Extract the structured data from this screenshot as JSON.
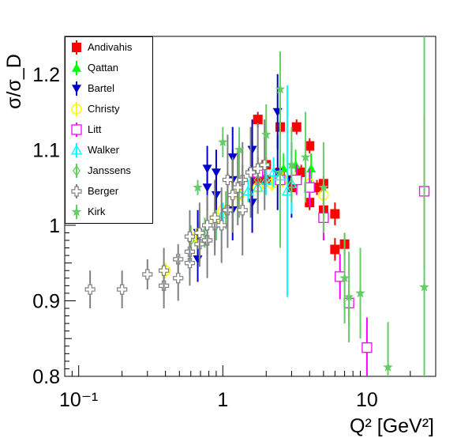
{
  "chart_data": {
    "type": "scatter",
    "x_scale": "log",
    "xlim": [
      0.08,
      30
    ],
    "ylim": [
      0.8,
      1.25
    ],
    "ylabel": "σ/σ_D",
    "xlabel": "Q² [GeV²]",
    "x_tick_labels": [
      "10⁻¹",
      "1",
      "10"
    ],
    "y_tick_labels": [
      "0.8",
      "0.9",
      "1",
      "1.1",
      "1.2"
    ],
    "legend_position": "top-left",
    "series": [
      {
        "name": "Andivahis",
        "marker": "filled-square",
        "color": "#ff0000",
        "points": [
          [
            1.75,
            1.14,
            0.01
          ],
          [
            2.5,
            1.13,
            0.01
          ],
          [
            3.25,
            1.13,
            0.01
          ],
          [
            4.0,
            1.105,
            0.01
          ],
          [
            5.0,
            1.055,
            0.01
          ],
          [
            2.0,
            1.06,
            0.01
          ],
          [
            2.5,
            1.07,
            0.01
          ],
          [
            3.0,
            1.05,
            0.01
          ],
          [
            3.5,
            1.07,
            0.01
          ],
          [
            4.0,
            1.03,
            0.01
          ],
          [
            4.5,
            1.05,
            0.01
          ],
          [
            5.0,
            1.02,
            0.01
          ],
          [
            6.0,
            1.015,
            0.015
          ],
          [
            6.0,
            0.968,
            0.015
          ],
          [
            7.0,
            0.975,
            0.015
          ],
          [
            1.75,
            1.06,
            0.01
          ],
          [
            2.0,
            1.08,
            0.01
          ],
          [
            3.0,
            1.06,
            0.01
          ]
        ]
      },
      {
        "name": "Qattan",
        "marker": "filled-triangle-up",
        "color": "#00ff00",
        "points": [
          [
            2.64,
            1.075,
            0.02
          ],
          [
            3.2,
            1.08,
            0.02
          ],
          [
            4.1,
            1.075,
            0.02
          ]
        ]
      },
      {
        "name": "Bartel",
        "marker": "filled-triangle-down",
        "color": "#0000cc",
        "points": [
          [
            0.67,
            0.955,
            0.03
          ],
          [
            0.67,
            0.99,
            0.03
          ],
          [
            0.78,
            1.05,
            0.03
          ],
          [
            0.78,
            1.075,
            0.03
          ],
          [
            0.9,
            1.04,
            0.03
          ],
          [
            0.9,
            1.07,
            0.03
          ],
          [
            1.17,
            1.02,
            0.04
          ],
          [
            1.17,
            1.06,
            0.04
          ],
          [
            1.17,
            1.09,
            0.04
          ],
          [
            1.6,
            1.03,
            0.04
          ],
          [
            1.6,
            1.07,
            0.04
          ],
          [
            1.6,
            1.1,
            0.04
          ],
          [
            2.4,
            1.07,
            0.05
          ],
          [
            2.4,
            1.15,
            0.05
          ],
          [
            3.0,
            1.06,
            0.05
          ]
        ]
      },
      {
        "name": "Christy",
        "marker": "open-circle",
        "color": "#ffff00",
        "points": [
          [
            0.65,
            0.985,
            0.01
          ],
          [
            0.9,
            1.01,
            0.01
          ],
          [
            1.0,
            1.02,
            0.01
          ],
          [
            1.3,
            1.04,
            0.01
          ],
          [
            1.75,
            1.05,
            0.01
          ],
          [
            2.2,
            1.055,
            0.01
          ],
          [
            2.6,
            1.06,
            0.01
          ],
          [
            3.2,
            1.06,
            0.01
          ],
          [
            4.0,
            1.055,
            0.01
          ],
          [
            5.0,
            1.04,
            0.01
          ],
          [
            0.4,
            0.94,
            0.01
          ]
        ]
      },
      {
        "name": "Litt",
        "marker": "open-square",
        "color": "#ff00ff",
        "points": [
          [
            1.75,
            1.07,
            0.02
          ],
          [
            2.5,
            1.06,
            0.02
          ],
          [
            3.25,
            1.06,
            0.02
          ],
          [
            4.0,
            1.05,
            0.025
          ],
          [
            5.0,
            1.01,
            0.03
          ],
          [
            6.5,
            0.932,
            0.03
          ],
          [
            7.5,
            0.897,
            0.03
          ],
          [
            10.0,
            0.838,
            0.04
          ],
          [
            25.0,
            1.045,
            0.1
          ]
        ]
      },
      {
        "name": "Walker",
        "marker": "open-triangle-up",
        "color": "#00ffff",
        "points": [
          [
            1.0,
            1.015,
            0.015
          ],
          [
            1.5,
            1.045,
            0.015
          ],
          [
            2.0,
            1.06,
            0.02
          ],
          [
            2.5,
            1.065,
            0.025
          ],
          [
            3.0,
            1.055,
            0.04
          ],
          [
            1.75,
            1.05,
            0.02
          ],
          [
            2.25,
            1.07,
            0.02
          ],
          [
            2.8,
            1.045,
            0.14
          ]
        ]
      },
      {
        "name": "Janssens",
        "marker": "open-diamond",
        "color": "#66cc66",
        "points": [
          [
            0.6,
            0.98,
            0.02
          ],
          [
            0.75,
            0.99,
            0.02
          ],
          [
            0.9,
            1.0,
            0.02
          ],
          [
            1.05,
            1.02,
            0.025
          ],
          [
            1.3,
            1.04,
            0.03
          ],
          [
            1.75,
            1.06,
            0.03
          ]
        ]
      },
      {
        "name": "Berger",
        "marker": "open-cross",
        "color": "#808080",
        "points": [
          [
            0.12,
            0.915,
            0.025
          ],
          [
            0.2,
            0.915,
            0.025
          ],
          [
            0.3,
            0.935,
            0.02
          ],
          [
            0.39,
            0.92,
            0.03
          ],
          [
            0.39,
            0.94,
            0.03
          ],
          [
            0.49,
            0.955,
            0.02
          ],
          [
            0.59,
            0.965,
            0.03
          ],
          [
            0.59,
            0.95,
            0.03
          ],
          [
            0.69,
            0.975,
            0.03
          ],
          [
            0.78,
            0.98,
            0.05
          ],
          [
            0.88,
            1.0,
            0.03
          ],
          [
            0.98,
            1.0,
            0.05
          ],
          [
            1.08,
            1.02,
            0.05
          ],
          [
            1.17,
            1.04,
            0.05
          ],
          [
            1.27,
            1.05,
            0.05
          ],
          [
            1.37,
            1.06,
            0.05
          ],
          [
            1.56,
            1.07,
            0.06
          ],
          [
            1.75,
            1.075,
            0.06
          ],
          [
            1.95,
            1.08,
            0.06
          ],
          [
            0.49,
            0.93,
            0.03
          ],
          [
            0.59,
            0.985,
            0.035
          ],
          [
            0.69,
            0.99,
            0.04
          ],
          [
            0.78,
            1.0,
            0.04
          ],
          [
            0.88,
            1.01,
            0.05
          ],
          [
            1.08,
            1.06,
            0.06
          ],
          [
            1.37,
            1.02,
            0.06
          ]
        ]
      },
      {
        "name": "Kirk",
        "marker": "filled-star",
        "color": "#66cc66",
        "points": [
          [
            0.67,
            1.05,
            0.01
          ],
          [
            1.0,
            1.11,
            0.02
          ],
          [
            1.3,
            1.1,
            0.03
          ],
          [
            2.5,
            1.18,
            0.05
          ],
          [
            3.75,
            1.09,
            0.06
          ],
          [
            5.0,
            1.05,
            0.06
          ],
          [
            7.0,
            0.93,
            0.06
          ],
          [
            7.5,
            0.905,
            0.06
          ],
          [
            9.0,
            0.91,
            0.06
          ],
          [
            14.0,
            0.812,
            0.06
          ],
          [
            25.0,
            0.918,
            0.35
          ],
          [
            2.0,
            1.12,
            0.04
          ],
          [
            2.5,
            1.07,
            0.1
          ],
          [
            3.0,
            1.08,
            0.05
          ]
        ]
      }
    ]
  }
}
